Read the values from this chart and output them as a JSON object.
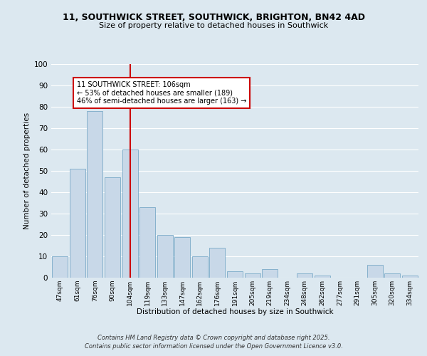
{
  "title_line1": "11, SOUTHWICK STREET, SOUTHWICK, BRIGHTON, BN42 4AD",
  "title_line2": "Size of property relative to detached houses in Southwick",
  "xlabel": "Distribution of detached houses by size in Southwick",
  "ylabel": "Number of detached properties",
  "categories": [
    "47sqm",
    "61sqm",
    "76sqm",
    "90sqm",
    "104sqm",
    "119sqm",
    "133sqm",
    "147sqm",
    "162sqm",
    "176sqm",
    "191sqm",
    "205sqm",
    "219sqm",
    "234sqm",
    "248sqm",
    "262sqm",
    "277sqm",
    "291sqm",
    "305sqm",
    "320sqm",
    "334sqm"
  ],
  "values": [
    10,
    51,
    78,
    47,
    60,
    33,
    20,
    19,
    10,
    14,
    3,
    2,
    4,
    0,
    2,
    1,
    0,
    0,
    6,
    2,
    1
  ],
  "bar_color": "#c8d8e8",
  "bar_edgecolor": "#7aaac8",
  "vline_x_idx": 4,
  "vline_color": "#cc0000",
  "annotation_text": "11 SOUTHWICK STREET: 106sqm\n← 53% of detached houses are smaller (189)\n46% of semi-detached houses are larger (163) →",
  "annotation_box_facecolor": "#ffffff",
  "annotation_box_edgecolor": "#cc0000",
  "ylim": [
    0,
    100
  ],
  "yticks": [
    0,
    10,
    20,
    30,
    40,
    50,
    60,
    70,
    80,
    90,
    100
  ],
  "bg_color": "#dce8f0",
  "grid_color": "#ffffff",
  "footer_line1": "Contains HM Land Registry data © Crown copyright and database right 2025.",
  "footer_line2": "Contains public sector information licensed under the Open Government Licence v3.0."
}
